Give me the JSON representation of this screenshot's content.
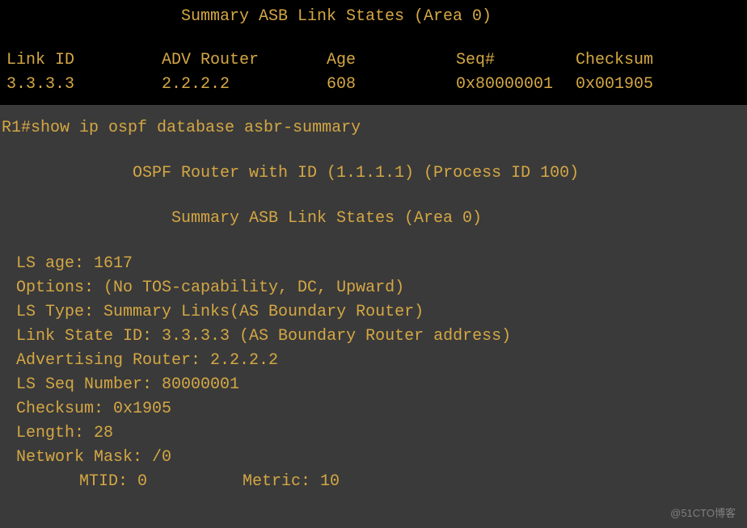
{
  "top": {
    "title": "Summary ASB Link States (Area 0)",
    "headers": {
      "link_id": "Link ID",
      "adv_router": "ADV Router",
      "age": "Age",
      "seq": "Seq#",
      "checksum": "Checksum"
    },
    "row": {
      "link_id": "3.3.3.3",
      "adv_router": "2.2.2.2",
      "age": "608",
      "seq": "0x80000001",
      "checksum": "0x001905"
    }
  },
  "bottom": {
    "prompt": "R1#show ip ospf database asbr-summary",
    "router_line": "OSPF Router with ID (1.1.1.1) (Process ID 100)",
    "title": "Summary ASB Link States (Area 0)",
    "details": {
      "ls_age": "LS age: 1617",
      "options": "Options: (No TOS-capability, DC, Upward)",
      "ls_type": "LS Type: Summary Links(AS Boundary Router)",
      "link_state_id": "Link State ID: 3.3.3.3 (AS Boundary Router address)",
      "adv_router": "Advertising Router: 2.2.2.2",
      "ls_seq": "LS Seq Number: 80000001",
      "checksum": "Checksum: 0x1905",
      "length": "Length: 28",
      "network_mask": "Network Mask: /0",
      "mtid": "MTID: 0",
      "metric": "Metric: 10"
    }
  },
  "watermark": "@51CTO博客"
}
